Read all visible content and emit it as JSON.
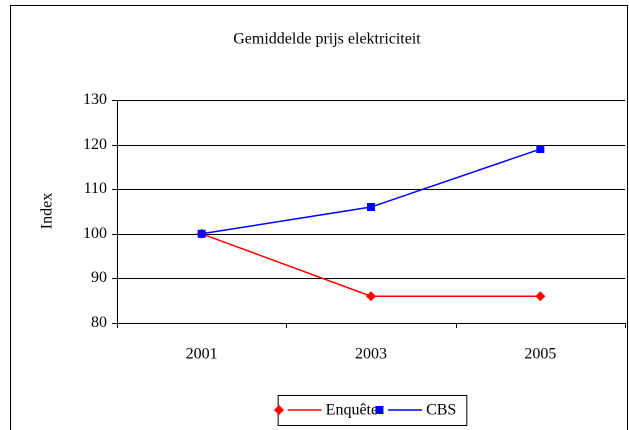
{
  "chart_data": {
    "type": "line",
    "title": "Gemiddelde prijs elektriciteit",
    "y_label": "Index",
    "categories": [
      "2001",
      "2003",
      "2005"
    ],
    "series": [
      {
        "name": "Enquête",
        "color": "#ff0000",
        "marker": "diamond",
        "values": [
          100,
          86,
          86
        ]
      },
      {
        "name": "CBS",
        "color": "#0000ff",
        "marker": "square",
        "values": [
          100,
          106,
          119
        ]
      }
    ],
    "ylim": [
      80,
      130
    ],
    "yticks": [
      80,
      90,
      100,
      110,
      120,
      130
    ],
    "grid": true,
    "legend": "bottom"
  }
}
